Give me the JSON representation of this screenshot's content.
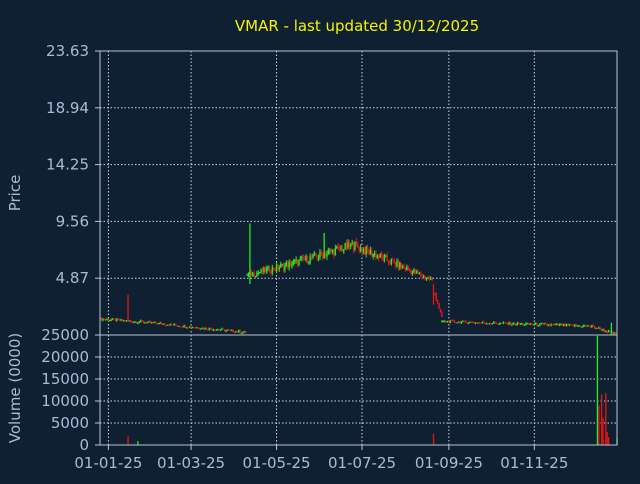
{
  "title": "VMAR - last updated 30/12/2025",
  "colors": {
    "background": "#102033",
    "title": "#f5f500",
    "axis_text": "#a8bcd8",
    "frame": "#b8c4d4",
    "grid": "#d0d8e0",
    "up": "#22ee22",
    "down": "#e81414"
  },
  "chart_data": [
    {
      "type": "candlestick",
      "title": "VMAR - last updated 30/12/2025",
      "ylabel": "Price",
      "ylim": [
        0.18,
        23.63
      ],
      "y_ticks": [
        "23.63",
        "18.94",
        "14.25",
        "9.56",
        "4.87"
      ],
      "x_ticks": [
        "01-01-25",
        "01-03-25",
        "01-05-25",
        "01-07-25",
        "01-09-25",
        "01-11-25"
      ],
      "x_range": [
        "2024-12-26",
        "2025-12-30"
      ],
      "grid": true,
      "segments": [
        {
          "from": "2024-12-26",
          "to": "2025-01-31",
          "close_start": 1.5,
          "close_end": 1.2
        },
        {
          "from": "2025-01-31",
          "to": "2025-04-09",
          "close_start": 1.2,
          "close_end": 0.4
        },
        {
          "from": "2025-04-10",
          "to": "2025-05-10",
          "close_start": 5.1,
          "close_end": 6.0
        },
        {
          "from": "2025-05-10",
          "to": "2025-06-25",
          "close_start": 6.0,
          "close_end": 7.6
        },
        {
          "from": "2025-06-25",
          "to": "2025-08-20",
          "close_start": 7.6,
          "close_end": 4.7
        },
        {
          "from": "2025-08-22",
          "to": "2025-08-27",
          "close_start": 3.6,
          "close_end": 1.6
        },
        {
          "from": "2025-08-27",
          "to": "2025-12-12",
          "close_start": 1.3,
          "close_end": 0.9
        },
        {
          "from": "2025-12-12",
          "to": "2025-12-30",
          "close_start": 0.9,
          "close_end": 0.2
        }
      ],
      "spikes": [
        {
          "date": "2025-01-15",
          "high": 3.5,
          "low": 1.3,
          "color": "down"
        },
        {
          "date": "2025-04-12",
          "high": 9.4,
          "low": 4.4,
          "color": "up"
        },
        {
          "date": "2025-06-04",
          "high": 8.6,
          "low": 6.8,
          "color": "up"
        },
        {
          "date": "2025-08-21",
          "high": 4.4,
          "low": 2.7,
          "color": "down"
        },
        {
          "date": "2025-12-26",
          "high": 1.2,
          "low": 0.2,
          "color": "up"
        }
      ]
    },
    {
      "type": "bar",
      "ylabel": "Volume (0000)",
      "ylim": [
        0,
        25000
      ],
      "y_ticks": [
        "25000",
        "20000",
        "15000",
        "10000",
        "5000",
        "0"
      ],
      "bars": [
        {
          "date": "2025-01-15",
          "value": 2000,
          "color": "down"
        },
        {
          "date": "2025-01-22",
          "value": 900,
          "color": "up"
        },
        {
          "date": "2025-08-21",
          "value": 2600,
          "color": "down"
        },
        {
          "date": "2025-12-16",
          "value": 24800,
          "color": "up"
        },
        {
          "date": "2025-12-17",
          "value": 9000,
          "color": "down"
        },
        {
          "date": "2025-12-19",
          "value": 11500,
          "color": "down"
        },
        {
          "date": "2025-12-20",
          "value": 6000,
          "color": "down"
        },
        {
          "date": "2025-12-22",
          "value": 11800,
          "color": "down"
        },
        {
          "date": "2025-12-23",
          "value": 3000,
          "color": "down"
        },
        {
          "date": "2025-12-24",
          "value": 1800,
          "color": "down"
        },
        {
          "date": "2025-12-30",
          "value": 1500,
          "color": "up"
        }
      ]
    }
  ]
}
